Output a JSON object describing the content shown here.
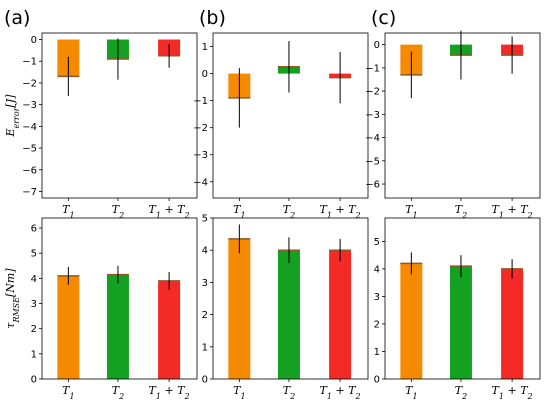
{
  "panel_labels": [
    "(a)",
    "(b)",
    "(c)"
  ],
  "colors": {
    "T1": "#f58a00",
    "T2": "#14a021",
    "T1T2": "#f42a26",
    "bar_top": "#8b5a28",
    "error_bar": "#000000"
  },
  "chart_data": [
    {
      "panel": "(a)",
      "row": "top",
      "type": "bar",
      "ylabel": "E_error[J]",
      "ylim": [
        -7.3,
        0.3
      ],
      "yticks": [
        "0",
        "−1",
        "−2",
        "−3",
        "−4",
        "−5",
        "−6",
        "−7"
      ],
      "categories": [
        "T_1",
        "T_2",
        "T_1 + T_2"
      ],
      "values": [
        -1.7,
        -0.9,
        -0.75
      ],
      "errors": [
        0.9,
        0.95,
        0.55
      ]
    },
    {
      "panel": "(b)",
      "row": "top",
      "type": "bar",
      "ylabel": "",
      "ylim": [
        -4.6,
        1.5
      ],
      "yticks": [
        "1",
        "0",
        "−1",
        "−2",
        "−3",
        "−4"
      ],
      "categories": [
        "T_1",
        "T_2",
        "T_1 + T_2"
      ],
      "values": [
        -0.9,
        0.25,
        -0.15
      ],
      "errors": [
        1.1,
        0.95,
        0.95
      ]
    },
    {
      "panel": "(c)",
      "row": "top",
      "type": "bar",
      "ylabel": "",
      "ylim": [
        -6.6,
        0.5
      ],
      "yticks": [
        "0",
        "−1",
        "−2",
        "−3",
        "−4",
        "−5",
        "−6"
      ],
      "categories": [
        "T_1",
        "T_2",
        "T_1 + T_2"
      ],
      "values": [
        -1.3,
        -0.45,
        -0.45
      ],
      "errors": [
        1.0,
        1.05,
        0.8
      ]
    },
    {
      "panel": "(a)",
      "row": "bottom",
      "type": "bar",
      "ylabel": "τ_RMSE[Nm]",
      "ylim": [
        0,
        6.4
      ],
      "yticks": [
        "0",
        "1",
        "2",
        "3",
        "4",
        "5",
        "6"
      ],
      "categories": [
        "T_1",
        "T_2",
        "T_1 + T_2"
      ],
      "values": [
        4.1,
        4.15,
        3.9
      ],
      "errors": [
        0.35,
        0.35,
        0.35
      ]
    },
    {
      "panel": "(b)",
      "row": "bottom",
      "type": "bar",
      "ylabel": "",
      "ylim": [
        0,
        5.0
      ],
      "yticks": [
        "0",
        "1",
        "2",
        "3",
        "4",
        "5"
      ],
      "categories": [
        "T_1",
        "T_2",
        "T_1 + T_2"
      ],
      "values": [
        4.35,
        4.0,
        4.0
      ],
      "errors": [
        0.45,
        0.4,
        0.35
      ]
    },
    {
      "panel": "(c)",
      "row": "bottom",
      "type": "bar",
      "ylabel": "",
      "ylim": [
        0,
        5.85
      ],
      "yticks": [
        "0",
        "1",
        "2",
        "3",
        "4",
        "5"
      ],
      "categories": [
        "T_1",
        "T_2",
        "T_1 + T_2"
      ],
      "values": [
        4.2,
        4.1,
        4.0
      ],
      "errors": [
        0.4,
        0.4,
        0.35
      ]
    }
  ]
}
